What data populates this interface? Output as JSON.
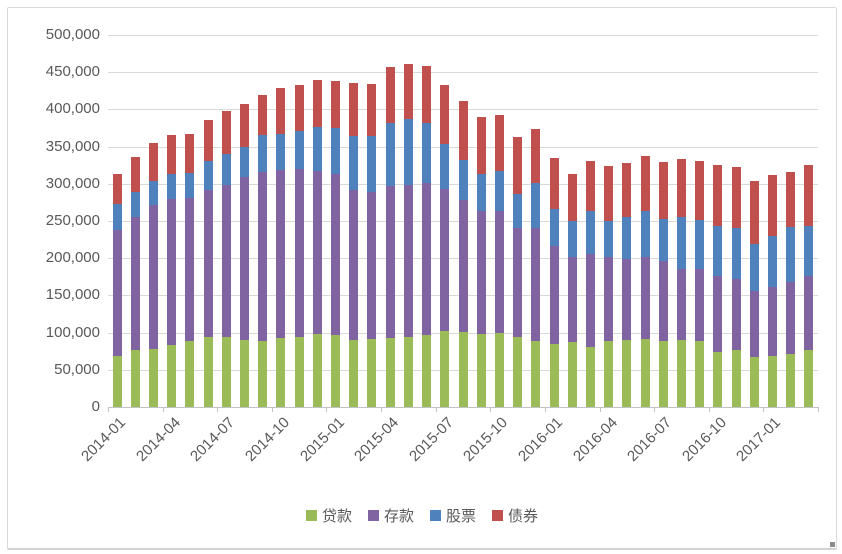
{
  "chart_data": {
    "type": "bar",
    "stacked": true,
    "title": "",
    "xlabel": "",
    "ylabel": "",
    "categories": [
      "2014-01",
      "2014-02",
      "2014-03",
      "2014-04",
      "2014-05",
      "2014-06",
      "2014-07",
      "2014-08",
      "2014-09",
      "2014-10",
      "2014-11",
      "2014-12",
      "2015-01",
      "2015-02",
      "2015-03",
      "2015-04",
      "2015-05",
      "2015-06",
      "2015-07",
      "2015-08",
      "2015-09",
      "2015-10",
      "2015-11",
      "2015-12",
      "2016-01",
      "2016-02",
      "2016-03",
      "2016-04",
      "2016-05",
      "2016-06",
      "2016-07",
      "2016-08",
      "2016-09",
      "2016-10",
      "2016-11",
      "2016-12",
      "2017-01",
      "2017-02",
      "2017-03"
    ],
    "series": [
      {
        "name": "贷款",
        "color": "#9bbb59",
        "values": [
          68000,
          77000,
          78000,
          84000,
          88500,
          93500,
          93500,
          90500,
          89000,
          92500,
          93500,
          98000,
          96500,
          90500,
          92000,
          92500,
          93500,
          96500,
          101500,
          101000,
          98000,
          99500,
          93500,
          89000,
          84500,
          87000,
          80000,
          88500,
          90500,
          92000,
          89000,
          90500,
          88500,
          74000,
          77000,
          67000,
          68000,
          71000,
          77000
        ]
      },
      {
        "name": "存款",
        "color": "#8064a2",
        "values": [
          170500,
          178000,
          193000,
          196000,
          192500,
          198500,
          204500,
          218000,
          227000,
          226500,
          227000,
          219500,
          216500,
          201500,
          197000,
          204000,
          204500,
          204500,
          192000,
          177500,
          165000,
          164500,
          147000,
          151500,
          131500,
          114000,
          125500,
          112500,
          109000,
          109000,
          107000,
          95500,
          97500,
          101500,
          95500,
          88500,
          93000,
          96500,
          98500
        ]
      },
      {
        "name": "股票",
        "color": "#4f81bd",
        "values": [
          35000,
          34000,
          32500,
          33000,
          33500,
          39000,
          42000,
          40500,
          49000,
          48000,
          50000,
          58500,
          62000,
          72000,
          75000,
          85500,
          89500,
          81000,
          60000,
          54000,
          50000,
          53500,
          46000,
          60500,
          50500,
          49500,
          57500,
          49500,
          55500,
          62000,
          57000,
          69000,
          66000,
          67500,
          68000,
          63500,
          68500,
          74000,
          67500
        ]
      },
      {
        "name": "债券",
        "color": "#c0504d",
        "values": [
          40000,
          47000,
          52000,
          52000,
          52500,
          55000,
          57500,
          58000,
          54000,
          61500,
          62500,
          64000,
          63500,
          71500,
          70000,
          74500,
          73500,
          76000,
          79000,
          79000,
          76500,
          75500,
          76000,
          73000,
          68000,
          62500,
          67000,
          73000,
          73000,
          75000,
          77000,
          79000,
          79000,
          82000,
          81500,
          85000,
          83000,
          74500,
          82000
        ]
      }
    ],
    "ylim": [
      0,
      500000
    ],
    "y_tick_step": 50000,
    "y_tick_labels": [
      "0",
      "50,000",
      "100,000",
      "150,000",
      "200,000",
      "250,000",
      "300,000",
      "350,000",
      "400,000",
      "450,000",
      "500,000"
    ],
    "x_label_every": 3,
    "grid": true,
    "legend_position": "bottom"
  },
  "colors": {
    "grid": "#d9d9d9",
    "baseline": "#c2c2c2",
    "axis_text": "#595959",
    "frame_border": "#d9d9d9"
  }
}
